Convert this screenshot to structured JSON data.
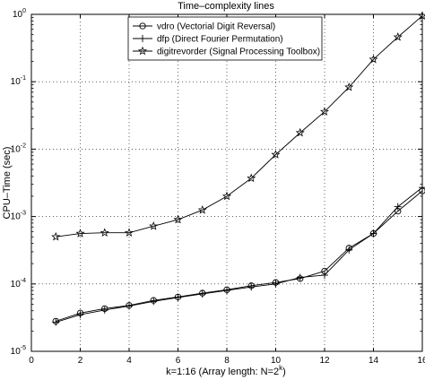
{
  "chart_data": {
    "type": "line",
    "title": "Time–complexity lines",
    "xlabel": "k=1:16 (Array length: N=2",
    "xlabel_sup": "k",
    "xlabel_close": ")",
    "ylabel": "CPU–Time (sec)",
    "xlim": [
      0,
      16
    ],
    "ylim": [
      1e-05,
      1
    ],
    "yscale": "log",
    "grid": "dotted",
    "legend_position": "top",
    "x_ticks": [
      "0",
      "2",
      "4",
      "6",
      "8",
      "10",
      "12",
      "14",
      "16"
    ],
    "y_ticks": [
      {
        "base": "10",
        "exp": "-5"
      },
      {
        "base": "10",
        "exp": "-4"
      },
      {
        "base": "10",
        "exp": "-3"
      },
      {
        "base": "10",
        "exp": "-2"
      },
      {
        "base": "10",
        "exp": "-1"
      },
      {
        "base": "10",
        "exp": "0"
      }
    ],
    "x": [
      1,
      2,
      3,
      4,
      5,
      6,
      7,
      8,
      9,
      10,
      11,
      12,
      13,
      14,
      15,
      16
    ],
    "series": [
      {
        "name": "vdro (Vectorial Digit Reversal)",
        "marker": "circle",
        "values": [
          2.8e-05,
          3.7e-05,
          4.3e-05,
          4.8e-05,
          5.7e-05,
          6.4e-05,
          7.3e-05,
          8.2e-05,
          9.4e-05,
          0.000105,
          0.00012,
          0.000155,
          0.00034,
          0.00056,
          0.0012,
          0.0024
        ]
      },
      {
        "name": "dfp (Direct Fourier Permutation)",
        "marker": "plus",
        "values": [
          2.7e-05,
          3.5e-05,
          4.1e-05,
          4.7e-05,
          5.5e-05,
          6.3e-05,
          7.1e-05,
          8e-05,
          9e-05,
          0.0001,
          0.000125,
          0.000135,
          0.00032,
          0.00056,
          0.0014,
          0.0027
        ]
      },
      {
        "name": "digitrevorder (Signal Processing Toolbox)",
        "marker": "star",
        "values": [
          0.0005,
          0.00056,
          0.000575,
          0.000575,
          0.00072,
          0.0009,
          0.00125,
          0.002,
          0.0037,
          0.0083,
          0.0175,
          0.036,
          0.083,
          0.215,
          0.46,
          0.95
        ]
      }
    ]
  }
}
